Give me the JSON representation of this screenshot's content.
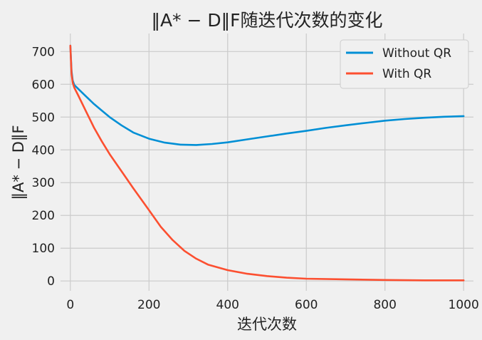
{
  "chart_data": {
    "type": "line",
    "title": "‖A* − D‖F随迭代次数的变化",
    "xlabel": "迭代次数",
    "ylabel": "‖A* − D‖F",
    "xlim": [
      -25,
      1025
    ],
    "ylim": [
      -30,
      755
    ],
    "xticks": [
      0,
      200,
      400,
      600,
      800,
      1000
    ],
    "yticks": [
      0,
      100,
      200,
      300,
      400,
      500,
      600,
      700
    ],
    "grid": true,
    "legend_position": "top-right",
    "series": [
      {
        "name": "Without QR",
        "color": "#008fd5",
        "points": [
          [
            0,
            718
          ],
          [
            3,
            640
          ],
          [
            6,
            612
          ],
          [
            10,
            598
          ],
          [
            20,
            586
          ],
          [
            40,
            563
          ],
          [
            60,
            540
          ],
          [
            80,
            520
          ],
          [
            100,
            500
          ],
          [
            130,
            475
          ],
          [
            160,
            453
          ],
          [
            200,
            434
          ],
          [
            240,
            422
          ],
          [
            280,
            416
          ],
          [
            320,
            415
          ],
          [
            360,
            418
          ],
          [
            400,
            423
          ],
          [
            450,
            432
          ],
          [
            500,
            441
          ],
          [
            550,
            450
          ],
          [
            600,
            458
          ],
          [
            650,
            467
          ],
          [
            700,
            475
          ],
          [
            750,
            482
          ],
          [
            800,
            489
          ],
          [
            850,
            494
          ],
          [
            900,
            498
          ],
          [
            950,
            501
          ],
          [
            1000,
            503
          ]
        ]
      },
      {
        "name": "With QR",
        "color": "#fc4f30",
        "points": [
          [
            0,
            718
          ],
          [
            3,
            632
          ],
          [
            6,
            605
          ],
          [
            10,
            590
          ],
          [
            20,
            566
          ],
          [
            40,
            517
          ],
          [
            60,
            468
          ],
          [
            80,
            426
          ],
          [
            100,
            387
          ],
          [
            130,
            335
          ],
          [
            160,
            283
          ],
          [
            200,
            216
          ],
          [
            230,
            165
          ],
          [
            260,
            125
          ],
          [
            290,
            92
          ],
          [
            320,
            68
          ],
          [
            350,
            50
          ],
          [
            400,
            33
          ],
          [
            450,
            22
          ],
          [
            500,
            15
          ],
          [
            550,
            10
          ],
          [
            600,
            7
          ],
          [
            700,
            5
          ],
          [
            800,
            3
          ],
          [
            900,
            2
          ],
          [
            1000,
            2
          ]
        ]
      }
    ]
  }
}
